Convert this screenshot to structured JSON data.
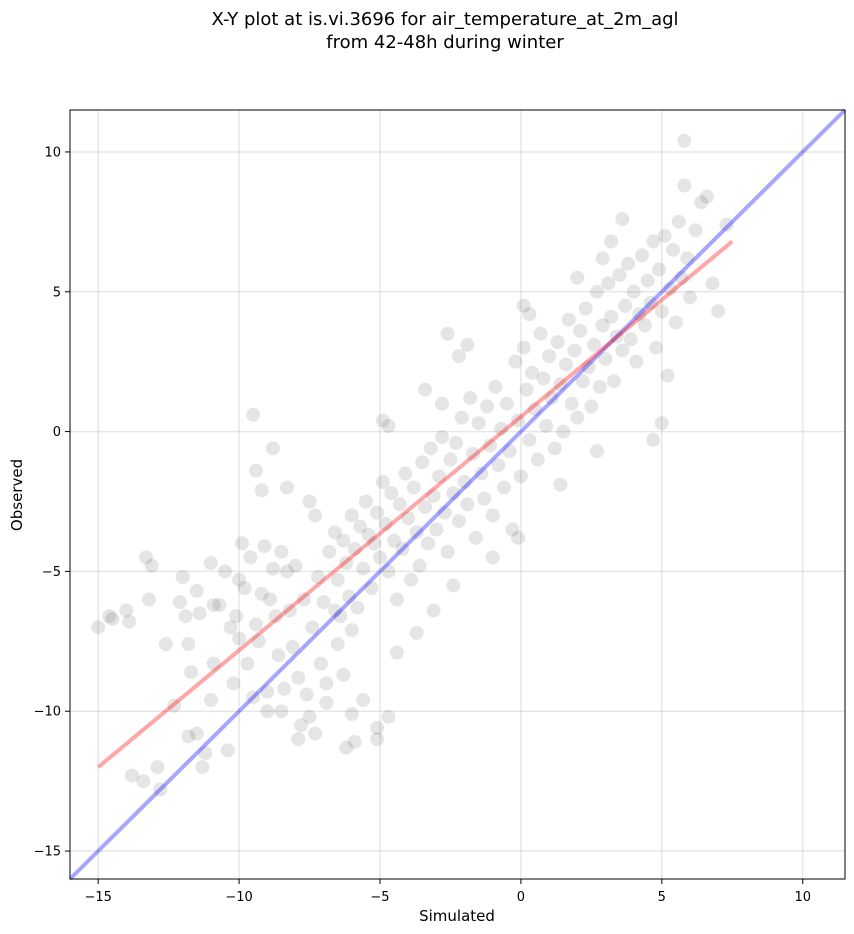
{
  "chart_data": {
    "type": "scatter",
    "title_line1": "X-Y plot at is.vi.3696 for air_temperature_at_2m_agl",
    "title_line2": "from 42-48h during winter",
    "xlabel": "Simulated",
    "ylabel": "Observed",
    "xlim": [
      -16.0,
      11.5
    ],
    "ylim": [
      -16.0,
      11.5
    ],
    "xticks": [
      -15,
      -10,
      -5,
      0,
      5,
      10
    ],
    "yticks": [
      -15,
      -10,
      -5,
      0,
      5,
      10
    ],
    "xtick_labels": [
      "−15",
      "−10",
      "−5",
      "0",
      "5",
      "10"
    ],
    "ytick_labels": [
      "−15",
      "−10",
      "−5",
      "0",
      "5",
      "10"
    ],
    "grid": true,
    "point_color": "#000000",
    "point_alpha": 0.1,
    "reference_lines": [
      {
        "kind": "one-to-one",
        "color": "#0000ff",
        "alpha": 0.35,
        "x": [
          -16.0,
          11.5
        ],
        "y": [
          -16.0,
          11.5
        ]
      },
      {
        "kind": "regression",
        "color": "#ff0000",
        "alpha": 0.35,
        "x": [
          -15.0,
          7.5
        ],
        "y": [
          -12.0,
          6.8
        ]
      }
    ],
    "series": [
      {
        "values": [
          [
            -15.0,
            -7.0
          ],
          [
            -14.6,
            -6.6
          ],
          [
            -14.5,
            -6.7
          ],
          [
            -14.0,
            -6.4
          ],
          [
            -13.9,
            -6.8
          ],
          [
            -13.3,
            -4.5
          ],
          [
            -13.1,
            -4.8
          ],
          [
            -13.2,
            -6.0
          ],
          [
            -13.8,
            -12.3
          ],
          [
            -13.4,
            -12.5
          ],
          [
            -12.9,
            -12.0
          ],
          [
            -12.8,
            -12.8
          ],
          [
            -12.6,
            -7.6
          ],
          [
            -12.1,
            -6.1
          ],
          [
            -12.0,
            -5.2
          ],
          [
            -11.9,
            -6.6
          ],
          [
            -11.8,
            -7.6
          ],
          [
            -11.8,
            -10.9
          ],
          [
            -11.5,
            -10.8
          ],
          [
            -11.3,
            -12.0
          ],
          [
            -11.2,
            -11.5
          ],
          [
            -11.5,
            -5.7
          ],
          [
            -11.4,
            -6.5
          ],
          [
            -11.0,
            -4.7
          ],
          [
            -10.9,
            -6.2
          ],
          [
            -10.9,
            -8.3
          ],
          [
            -10.7,
            -6.2
          ],
          [
            -10.5,
            -5.0
          ],
          [
            -10.3,
            -7.0
          ],
          [
            -10.2,
            -9.0
          ],
          [
            -10.1,
            -6.6
          ],
          [
            -10.0,
            -7.4
          ],
          [
            -10.0,
            -5.3
          ],
          [
            -9.9,
            -4.0
          ],
          [
            -9.8,
            -5.6
          ],
          [
            -9.7,
            -8.3
          ],
          [
            -9.6,
            -4.5
          ],
          [
            -9.5,
            -9.5
          ],
          [
            -9.4,
            -6.9
          ],
          [
            -9.3,
            -7.5
          ],
          [
            -9.2,
            -5.8
          ],
          [
            -9.1,
            -4.1
          ],
          [
            -9.0,
            -10.0
          ],
          [
            -8.9,
            -6.0
          ],
          [
            -8.8,
            -4.9
          ],
          [
            -8.7,
            -6.6
          ],
          [
            -8.6,
            -8.0
          ],
          [
            -8.5,
            -4.3
          ],
          [
            -8.4,
            -9.2
          ],
          [
            -8.3,
            -5.0
          ],
          [
            -8.2,
            -6.4
          ],
          [
            -8.1,
            -7.7
          ],
          [
            -8.0,
            -4.8
          ],
          [
            -7.9,
            -8.8
          ],
          [
            -7.8,
            -10.5
          ],
          [
            -7.7,
            -6.0
          ],
          [
            -7.6,
            -9.4
          ],
          [
            -7.5,
            -10.2
          ],
          [
            -7.4,
            -7.0
          ],
          [
            -7.3,
            -10.8
          ],
          [
            -7.2,
            -5.2
          ],
          [
            -7.1,
            -8.3
          ],
          [
            -7.0,
            -6.1
          ],
          [
            -6.9,
            -9.0
          ],
          [
            -9.5,
            0.6
          ],
          [
            -9.4,
            -1.4
          ],
          [
            -9.2,
            -2.1
          ],
          [
            -8.8,
            -0.6
          ],
          [
            -8.3,
            -2.0
          ],
          [
            -7.5,
            -2.5
          ],
          [
            -7.3,
            -3.0
          ],
          [
            -6.2,
            -11.3
          ],
          [
            -5.9,
            -11.1
          ],
          [
            -5.1,
            -10.6
          ],
          [
            -4.7,
            -10.2
          ],
          [
            -5.1,
            -11.0
          ],
          [
            -6.0,
            -10.1
          ],
          [
            -5.6,
            -9.6
          ],
          [
            -6.3,
            -8.7
          ],
          [
            -6.5,
            -7.6
          ],
          [
            -6.8,
            -4.3
          ],
          [
            -6.6,
            -3.6
          ],
          [
            -6.5,
            -5.3
          ],
          [
            -6.4,
            -6.6
          ],
          [
            -6.3,
            -3.9
          ],
          [
            -6.2,
            -4.7
          ],
          [
            -6.1,
            -5.9
          ],
          [
            -6.0,
            -3.0
          ],
          [
            -5.9,
            -4.2
          ],
          [
            -5.8,
            -6.3
          ],
          [
            -5.7,
            -3.4
          ],
          [
            -5.6,
            -4.9
          ],
          [
            -5.5,
            -2.5
          ],
          [
            -5.4,
            -3.7
          ],
          [
            -5.3,
            -5.6
          ],
          [
            -5.2,
            -4.0
          ],
          [
            -5.1,
            -2.9
          ],
          [
            -5.0,
            -4.5
          ],
          [
            -4.9,
            -1.8
          ],
          [
            -4.8,
            -3.3
          ],
          [
            -4.7,
            -5.0
          ],
          [
            -4.6,
            -2.2
          ],
          [
            -4.5,
            -3.9
          ],
          [
            -4.4,
            -6.0
          ],
          [
            -4.3,
            -2.6
          ],
          [
            -4.2,
            -4.2
          ],
          [
            -4.1,
            -1.5
          ],
          [
            -4.0,
            -3.1
          ],
          [
            -3.9,
            -5.3
          ],
          [
            -3.8,
            -2.0
          ],
          [
            -3.7,
            -3.6
          ],
          [
            -3.6,
            -4.8
          ],
          [
            -3.5,
            -1.1
          ],
          [
            -3.4,
            -2.7
          ],
          [
            -3.3,
            -4.0
          ],
          [
            -3.2,
            -0.6
          ],
          [
            -3.1,
            -2.3
          ],
          [
            -3.0,
            -3.5
          ],
          [
            -2.9,
            -1.6
          ],
          [
            -2.8,
            -0.2
          ],
          [
            -2.7,
            -2.9
          ],
          [
            -2.6,
            -4.3
          ],
          [
            -2.5,
            -1.0
          ],
          [
            -2.4,
            -2.2
          ],
          [
            -2.3,
            -0.4
          ],
          [
            -2.2,
            -3.2
          ],
          [
            -2.1,
            0.5
          ],
          [
            -2.0,
            -1.8
          ],
          [
            -1.9,
            -2.6
          ],
          [
            -1.8,
            1.2
          ],
          [
            -1.7,
            -0.8
          ],
          [
            -1.6,
            -3.8
          ],
          [
            -1.5,
            0.3
          ],
          [
            -1.4,
            -1.5
          ],
          [
            -1.3,
            -2.4
          ],
          [
            -1.2,
            0.9
          ],
          [
            -1.1,
            -0.5
          ],
          [
            -1.0,
            -3.0
          ],
          [
            -0.9,
            1.6
          ],
          [
            -0.8,
            -1.2
          ],
          [
            -0.7,
            0.1
          ],
          [
            -0.6,
            -2.0
          ],
          [
            -0.5,
            1.0
          ],
          [
            -0.4,
            -0.7
          ],
          [
            -0.3,
            -3.5
          ],
          [
            -0.2,
            2.5
          ],
          [
            -0.1,
            0.4
          ],
          [
            0.0,
            -1.6
          ],
          [
            0.1,
            3.0
          ],
          [
            0.2,
            1.5
          ],
          [
            0.3,
            -0.3
          ],
          [
            0.4,
            2.1
          ],
          [
            0.5,
            0.8
          ],
          [
            0.6,
            -1.0
          ],
          [
            0.7,
            3.5
          ],
          [
            0.8,
            1.9
          ],
          [
            0.9,
            0.2
          ],
          [
            1.0,
            2.7
          ],
          [
            1.1,
            1.2
          ],
          [
            1.2,
            -0.6
          ],
          [
            1.3,
            3.2
          ],
          [
            1.4,
            1.7
          ],
          [
            1.5,
            0.0
          ],
          [
            1.6,
            2.4
          ],
          [
            1.7,
            4.0
          ],
          [
            1.8,
            1.0
          ],
          [
            1.9,
            2.9
          ],
          [
            2.0,
            0.5
          ],
          [
            2.1,
            3.6
          ],
          [
            2.2,
            1.8
          ],
          [
            2.3,
            4.4
          ],
          [
            2.4,
            2.3
          ],
          [
            2.5,
            0.9
          ],
          [
            2.6,
            3.1
          ],
          [
            2.7,
            5.0
          ],
          [
            2.8,
            1.6
          ],
          [
            2.9,
            3.8
          ],
          [
            3.0,
            2.6
          ],
          [
            3.1,
            5.3
          ],
          [
            3.2,
            4.1
          ],
          [
            3.3,
            1.8
          ],
          [
            3.4,
            3.4
          ],
          [
            3.5,
            5.6
          ],
          [
            3.6,
            2.9
          ],
          [
            3.7,
            4.5
          ],
          [
            3.8,
            6.0
          ],
          [
            3.9,
            3.3
          ],
          [
            4.0,
            5.0
          ],
          [
            4.1,
            2.5
          ],
          [
            4.2,
            4.2
          ],
          [
            4.3,
            6.3
          ],
          [
            4.4,
            3.8
          ],
          [
            4.5,
            5.4
          ],
          [
            4.6,
            4.6
          ],
          [
            4.7,
            6.8
          ],
          [
            4.8,
            3.0
          ],
          [
            4.9,
            5.8
          ],
          [
            5.0,
            4.3
          ],
          [
            5.1,
            7.0
          ],
          [
            5.2,
            2.0
          ],
          [
            5.3,
            5.1
          ],
          [
            5.4,
            6.5
          ],
          [
            5.5,
            3.9
          ],
          [
            5.6,
            7.5
          ],
          [
            5.7,
            5.5
          ],
          [
            5.8,
            8.8
          ],
          [
            5.9,
            6.2
          ],
          [
            6.0,
            4.8
          ],
          [
            6.2,
            7.2
          ],
          [
            6.4,
            8.2
          ],
          [
            6.6,
            8.4
          ],
          [
            6.8,
            5.3
          ],
          [
            7.0,
            4.3
          ],
          [
            7.3,
            7.4
          ],
          [
            5.8,
            10.4
          ],
          [
            4.7,
            -0.3
          ],
          [
            5.0,
            0.3
          ],
          [
            2.7,
            -0.7
          ],
          [
            1.4,
            -1.9
          ],
          [
            -0.1,
            -3.8
          ],
          [
            -1.0,
            -4.5
          ],
          [
            -2.4,
            -5.5
          ],
          [
            -3.1,
            -6.4
          ],
          [
            -3.7,
            -7.2
          ],
          [
            -4.4,
            -7.9
          ],
          [
            -4.9,
            0.4
          ],
          [
            -4.7,
            0.2
          ],
          [
            -2.6,
            3.5
          ],
          [
            -2.2,
            2.7
          ],
          [
            -1.9,
            3.1
          ],
          [
            -3.4,
            1.5
          ],
          [
            -2.8,
            1.0
          ],
          [
            0.1,
            4.5
          ],
          [
            0.3,
            4.2
          ],
          [
            2.0,
            5.5
          ],
          [
            2.9,
            6.2
          ],
          [
            3.2,
            6.8
          ],
          [
            3.6,
            7.6
          ],
          [
            -11.0,
            -9.6
          ],
          [
            -10.4,
            -11.4
          ],
          [
            -12.3,
            -9.8
          ],
          [
            -11.7,
            -8.6
          ],
          [
            -9.0,
            -9.3
          ],
          [
            -8.5,
            -10.0
          ],
          [
            -7.9,
            -11.0
          ],
          [
            -6.9,
            -9.7
          ],
          [
            -6.6,
            -6.4
          ],
          [
            -6.0,
            -7.1
          ]
        ]
      }
    ]
  }
}
